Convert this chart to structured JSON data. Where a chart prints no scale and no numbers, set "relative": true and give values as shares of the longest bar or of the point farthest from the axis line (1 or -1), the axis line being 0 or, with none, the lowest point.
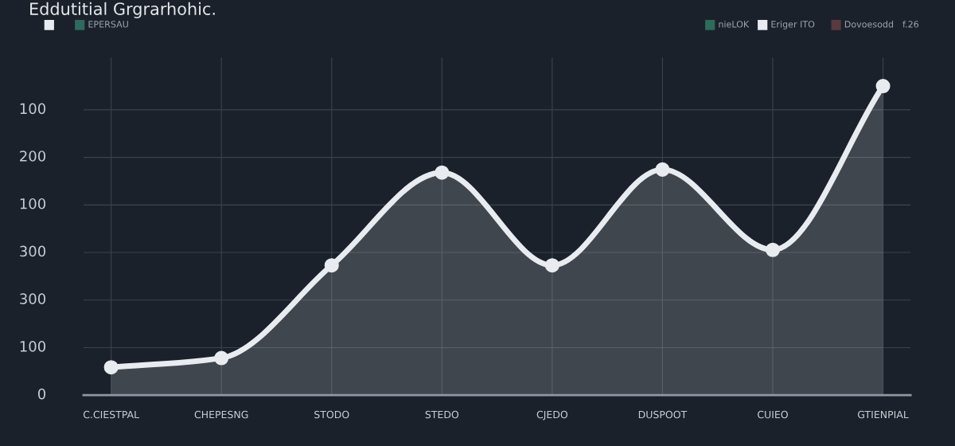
{
  "chart_data": {
    "type": "area",
    "title": "Eddutitial Grgrarhohic.",
    "categories": [
      "C.CIESTPAL",
      "CHEPESNG",
      "STODO",
      "STEDO",
      "CJEDO",
      "DUSPOOT",
      "CUIEO",
      "GTIENPIAL"
    ],
    "series": [
      {
        "color": "#e8ecf0",
        "values": [
          0.09,
          0.12,
          0.42,
          0.72,
          0.42,
          0.73,
          0.47,
          1
        ]
      }
    ],
    "relative": true,
    "grid": true,
    "marker": "circle",
    "line_style": "solid",
    "annotations": [
      "EPERSAU",
      "nieLOK",
      "Eriger ITO",
      "Dovoesodd",
      "f.26",
      "0",
      "100",
      "300",
      "300",
      "100",
      "200",
      "100"
    ]
  }
}
